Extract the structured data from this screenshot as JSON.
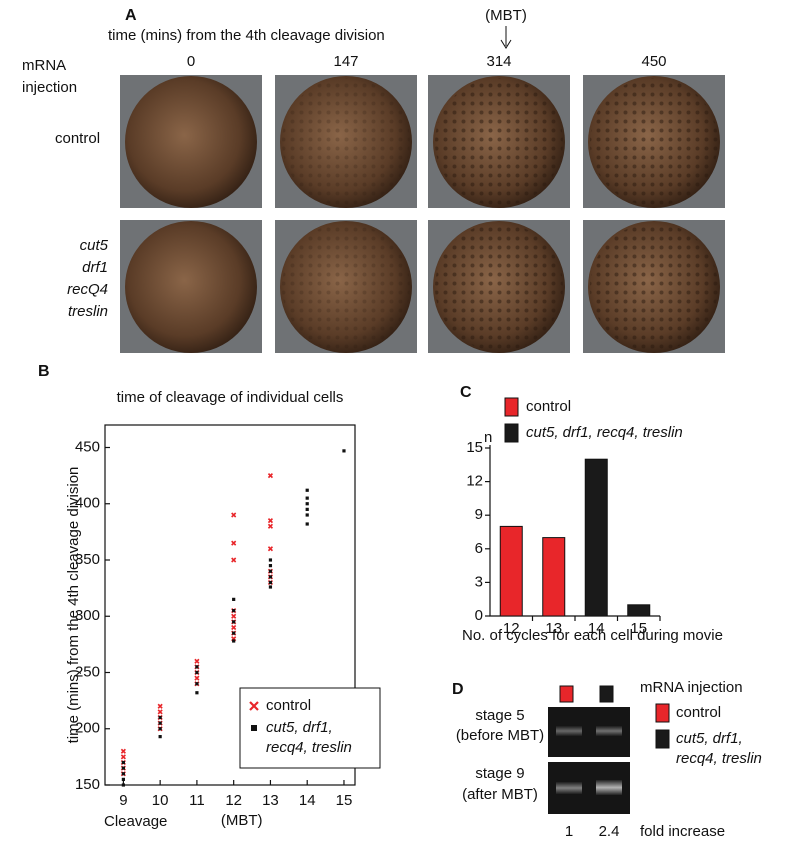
{
  "panel_a": {
    "label": "A",
    "time_heading": "time (mins) from the 4th cleavage division",
    "mbt_label": "(MBT)",
    "row_heading_lines": [
      "mRNA",
      "injection"
    ],
    "times": [
      0,
      147,
      314,
      450
    ],
    "row_1_label": "control",
    "row_2_lines": [
      "cut5",
      "drf1",
      "recQ4",
      "treslin"
    ]
  },
  "chart_data": [
    {
      "type": "scatter",
      "panel_label": "B",
      "title": "time of cleavage of individual cells",
      "y_label": "time (mins) from the 4th cleavage division",
      "x_label": "Cleavage",
      "x_annotation": "(MBT)",
      "xlim": [
        8.5,
        15.3
      ],
      "xticks": [
        9,
        10,
        11,
        12,
        13,
        14,
        15
      ],
      "ylim": [
        150,
        470
      ],
      "yticks": [
        150,
        200,
        250,
        300,
        350,
        400,
        450
      ],
      "series": [
        {
          "name": "control",
          "color": "#e8262a",
          "marker": "x",
          "x": [
            9,
            9,
            9,
            9,
            9,
            10,
            10,
            10,
            10,
            10,
            11,
            11,
            11,
            11,
            11,
            12,
            12,
            12,
            12,
            12,
            12,
            12,
            12,
            12,
            13,
            13,
            13,
            13,
            13,
            13,
            13
          ],
          "values": [
            160,
            165,
            170,
            175,
            180,
            200,
            205,
            210,
            215,
            220,
            240,
            245,
            250,
            255,
            260,
            280,
            285,
            290,
            295,
            300,
            305,
            350,
            365,
            390,
            330,
            335,
            340,
            360,
            380,
            385,
            425
          ]
        },
        {
          "name": "cut5, drf1, recq4, treslin",
          "color": "#111111",
          "marker": "square",
          "x": [
            9,
            9,
            9,
            9,
            9,
            10,
            10,
            10,
            10,
            11,
            11,
            11,
            11,
            12,
            12,
            12,
            12,
            12,
            13,
            13,
            13,
            13,
            13,
            13,
            14,
            14,
            14,
            14,
            14,
            14,
            15
          ],
          "values": [
            150,
            155,
            160,
            165,
            170,
            193,
            200,
            205,
            210,
            232,
            240,
            250,
            255,
            278,
            285,
            295,
            305,
            315,
            326,
            330,
            335,
            340,
            345,
            350,
            382,
            390,
            395,
            400,
            405,
            412,
            447
          ]
        }
      ]
    },
    {
      "type": "bar",
      "panel_label": "C",
      "y_label": "n",
      "x_label": "No. of cycles for each cell during movie",
      "categories": [
        12,
        13,
        14,
        15
      ],
      "ylim": [
        0,
        15
      ],
      "yticks": [
        0,
        3,
        6,
        9,
        12,
        15
      ],
      "series": [
        {
          "name": "control",
          "color": "#e8262a",
          "values": [
            8,
            7,
            null,
            null
          ]
        },
        {
          "name": "cut5, drf1, recq4, treslin",
          "color": "#1a1a1a",
          "values": [
            null,
            null,
            14,
            1
          ]
        }
      ]
    }
  ],
  "panel_d": {
    "label": "D",
    "legend_heading": "mRNA injection",
    "legend": [
      {
        "name": "control",
        "color": "#e8262a"
      },
      {
        "name": "cut5, drf1, recq4, treslin",
        "color": "#1a1a1a"
      }
    ],
    "stage_5_lines": [
      "stage 5",
      "(before MBT)"
    ],
    "stage_9_lines": [
      "stage 9",
      "(after MBT)"
    ],
    "fold_values": [
      1,
      2.4
    ],
    "fold_label": "fold increase"
  }
}
